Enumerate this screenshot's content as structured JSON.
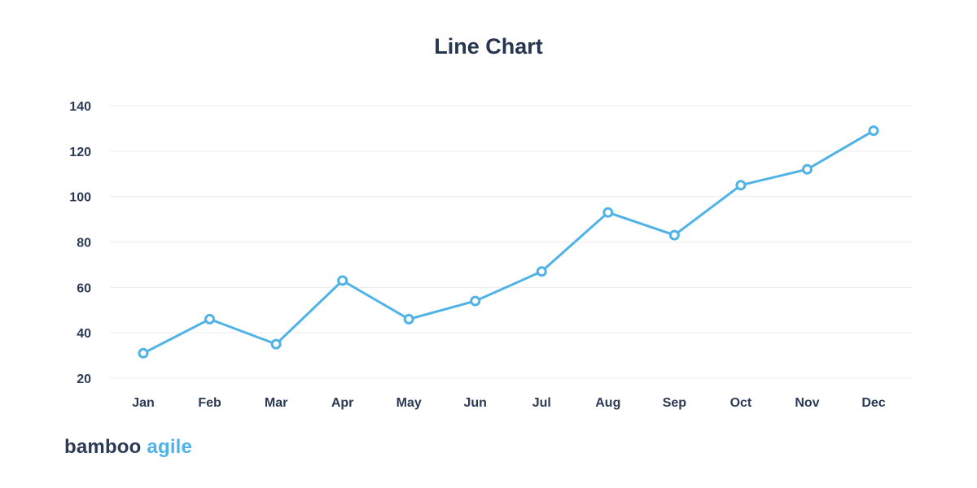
{
  "chart_data": {
    "type": "line",
    "title": "Line Chart",
    "xlabel": "",
    "ylabel": "",
    "categories": [
      "Jan",
      "Feb",
      "Mar",
      "Apr",
      "May",
      "Jun",
      "Jul",
      "Aug",
      "Sep",
      "Oct",
      "Nov",
      "Dec"
    ],
    "values": [
      31,
      46,
      35,
      63,
      46,
      54,
      67,
      93,
      83,
      105,
      112,
      129
    ],
    "y_ticks": [
      "20",
      "40",
      "60",
      "80",
      "100",
      "120",
      "140"
    ],
    "ylim": [
      20,
      140
    ],
    "grid": true,
    "legend": "none",
    "line_color": "#4fb3e8"
  },
  "brand": {
    "part1": "bamboo",
    "part2": "agile"
  }
}
